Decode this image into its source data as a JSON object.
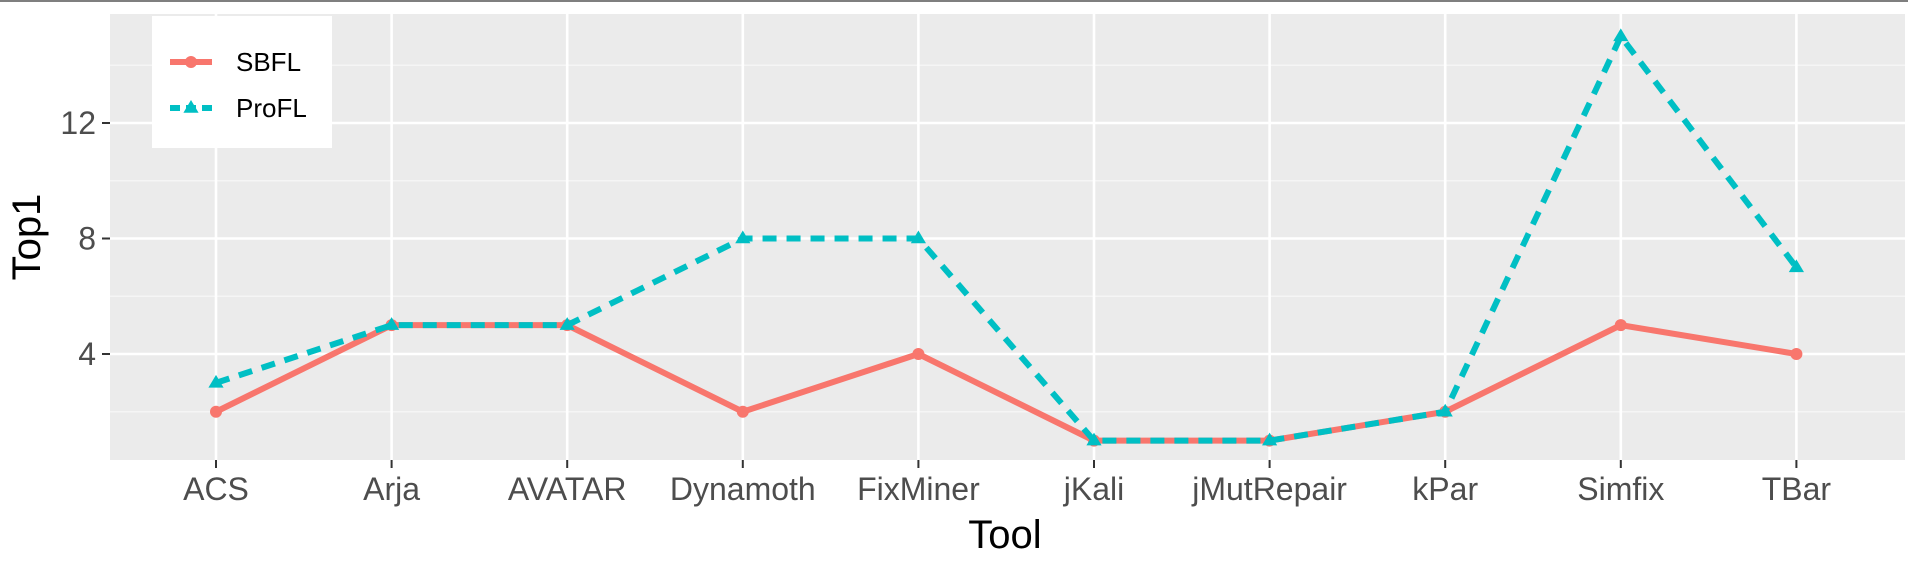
{
  "chart_data": {
    "type": "line",
    "xlabel": "Tool",
    "ylabel": "Top1",
    "categories": [
      "ACS",
      "Arja",
      "AVATAR",
      "Dynamoth",
      "FixMiner",
      "jKali",
      "jMutRepair",
      "kPar",
      "Simfix",
      "TBar"
    ],
    "ylim": [
      0,
      15.5
    ],
    "yticks": [
      4,
      8,
      12
    ],
    "ytick_labels": [
      "4",
      "8",
      "12"
    ],
    "grid": true,
    "legend_position": "top-left",
    "series": [
      {
        "name": "SBFL",
        "values": [
          2,
          5,
          5,
          2,
          4,
          1,
          1,
          2,
          5,
          4
        ],
        "color": "#F8766D",
        "linestyle": "solid",
        "marker": "circle"
      },
      {
        "name": "ProFL",
        "values": [
          3,
          5,
          5,
          8,
          8,
          1,
          1,
          2,
          15,
          7
        ],
        "color": "#00BFC4",
        "linestyle": "dashed",
        "marker": "triangle"
      }
    ]
  }
}
